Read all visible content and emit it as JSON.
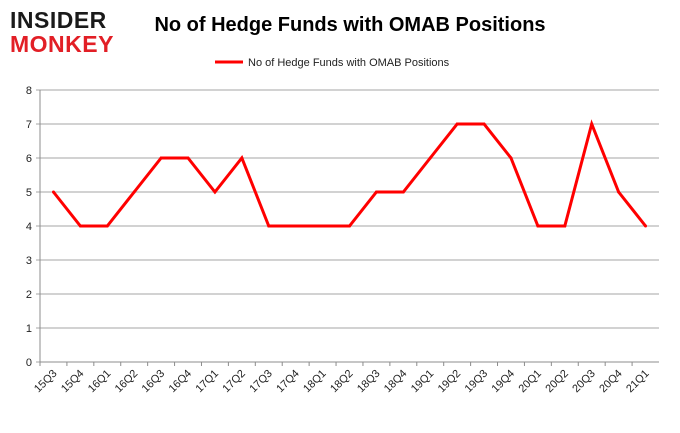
{
  "logo": {
    "line1": "INSIDER",
    "line2": "MONKEY"
  },
  "chart_data": {
    "type": "line",
    "title": "No of Hedge Funds with OMAB Positions",
    "categories": [
      "15Q3",
      "15Q4",
      "16Q1",
      "16Q2",
      "16Q3",
      "16Q4",
      "17Q1",
      "17Q2",
      "17Q3",
      "17Q4",
      "18Q1",
      "18Q2",
      "18Q3",
      "18Q4",
      "19Q1",
      "19Q2",
      "19Q3",
      "19Q4",
      "20Q1",
      "20Q2",
      "20Q3",
      "20Q4",
      "21Q1"
    ],
    "series": [
      {
        "name": "No of Hedge Funds with OMAB Positions",
        "color": "#ff0000",
        "values": [
          5,
          4,
          4,
          5,
          6,
          6,
          5,
          6,
          4,
          4,
          4,
          4,
          5,
          5,
          6,
          7,
          7,
          6,
          4,
          4,
          7,
          5,
          4
        ]
      }
    ],
    "ylim": [
      0,
      8
    ],
    "yticks": [
      0,
      1,
      2,
      3,
      4,
      5,
      6,
      7,
      8
    ],
    "grid": true,
    "legend": "top-center"
  }
}
